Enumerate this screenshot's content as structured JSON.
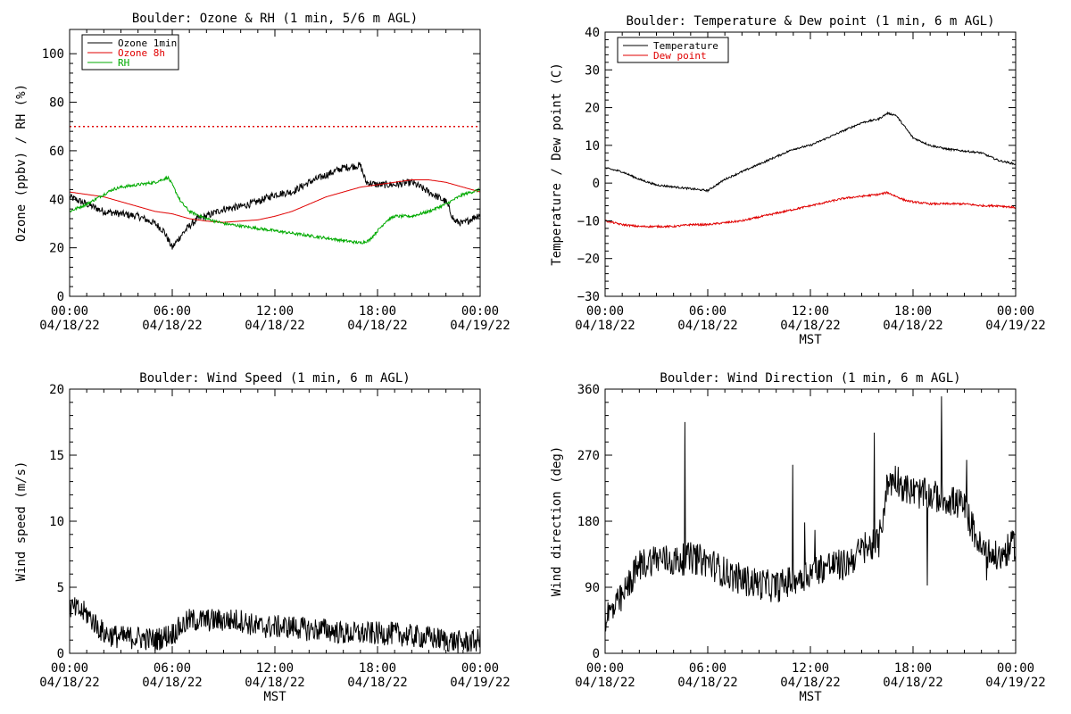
{
  "chart_data": [
    {
      "type": "line",
      "title": "Boulder: Ozone & RH (1 min, 5/6 m AGL)",
      "xlabel": "",
      "ylabel": "Ozone (ppbv) / RH (%)",
      "xlim": [
        "2022-04-18 00:00",
        "2022-04-19 00:00"
      ],
      "ylim": [
        0,
        110
      ],
      "xticks": [
        {
          "time": "00:00",
          "date": "04/18/22"
        },
        {
          "time": "06:00",
          "date": "04/18/22"
        },
        {
          "time": "12:00",
          "date": "04/18/22"
        },
        {
          "time": "18:00",
          "date": "04/18/22"
        },
        {
          "time": "00:00",
          "date": "04/19/22"
        }
      ],
      "yticks": [
        "0",
        "20",
        "40",
        "60",
        "80",
        "100"
      ],
      "legend_position": "top-left",
      "reference_line": {
        "y": 70,
        "color": "#e00000",
        "style": "dotted"
      },
      "series": [
        {
          "name": "Ozone 1min",
          "color": "#000000",
          "noise": 1.5,
          "points": [
            [
              "00:00",
              41
            ],
            [
              "01:00",
              38
            ],
            [
              "02:00",
              35
            ],
            [
              "03:00",
              34
            ],
            [
              "04:00",
              33
            ],
            [
              "05:00",
              30
            ],
            [
              "05:30",
              27
            ],
            [
              "06:00",
              20
            ],
            [
              "06:30",
              25
            ],
            [
              "07:00",
              29
            ],
            [
              "07:30",
              32
            ],
            [
              "08:00",
              33
            ],
            [
              "09:00",
              36
            ],
            [
              "10:00",
              37
            ],
            [
              "11:00",
              39
            ],
            [
              "12:00",
              42
            ],
            [
              "13:00",
              43
            ],
            [
              "14:00",
              47
            ],
            [
              "15:00",
              50
            ],
            [
              "16:00",
              53
            ],
            [
              "17:00",
              54
            ],
            [
              "17:20",
              47
            ],
            [
              "18:00",
              46
            ],
            [
              "19:00",
              46
            ],
            [
              "20:00",
              47
            ],
            [
              "21:00",
              43
            ],
            [
              "22:00",
              39
            ],
            [
              "22:30",
              31
            ],
            [
              "23:00",
              30
            ],
            [
              "23:30",
              32
            ],
            [
              "24:00",
              34
            ]
          ]
        },
        {
          "name": "Ozone 8h",
          "color": "#e00000",
          "noise": 0,
          "points": [
            [
              "00:00",
              43
            ],
            [
              "01:00",
              42
            ],
            [
              "02:00",
              41
            ],
            [
              "03:00",
              39
            ],
            [
              "04:00",
              37
            ],
            [
              "05:00",
              35
            ],
            [
              "06:00",
              34
            ],
            [
              "07:00",
              32
            ],
            [
              "08:00",
              31
            ],
            [
              "09:00",
              30.5
            ],
            [
              "10:00",
              31
            ],
            [
              "11:00",
              31.5
            ],
            [
              "12:00",
              33
            ],
            [
              "13:00",
              35
            ],
            [
              "14:00",
              38
            ],
            [
              "15:00",
              41
            ],
            [
              "16:00",
              43
            ],
            [
              "17:00",
              45
            ],
            [
              "18:00",
              46
            ],
            [
              "19:00",
              47
            ],
            [
              "20:00",
              48
            ],
            [
              "21:00",
              48
            ],
            [
              "22:00",
              47
            ],
            [
              "23:00",
              45
            ],
            [
              "24:00",
              43
            ]
          ]
        },
        {
          "name": "RH",
          "color": "#00aa00",
          "noise": 0.6,
          "points": [
            [
              "00:00",
              35
            ],
            [
              "01:00",
              38
            ],
            [
              "02:00",
              42
            ],
            [
              "02:30",
              44
            ],
            [
              "03:00",
              45
            ],
            [
              "04:00",
              46
            ],
            [
              "05:00",
              47
            ],
            [
              "05:45",
              49
            ],
            [
              "06:00",
              46
            ],
            [
              "06:30",
              39
            ],
            [
              "07:00",
              35
            ],
            [
              "08:00",
              32
            ],
            [
              "09:00",
              30
            ],
            [
              "10:00",
              29
            ],
            [
              "11:00",
              28
            ],
            [
              "12:00",
              27
            ],
            [
              "13:00",
              26
            ],
            [
              "14:00",
              25
            ],
            [
              "15:00",
              24
            ],
            [
              "16:00",
              23
            ],
            [
              "17:00",
              22
            ],
            [
              "17:30",
              23
            ],
            [
              "18:00",
              27
            ],
            [
              "18:30",
              31
            ],
            [
              "19:00",
              33
            ],
            [
              "20:00",
              33
            ],
            [
              "21:00",
              35
            ],
            [
              "22:00",
              38
            ],
            [
              "23:00",
              42
            ],
            [
              "24:00",
              44
            ]
          ]
        }
      ]
    },
    {
      "type": "line",
      "title": "Boulder: Temperature & Dew point (1 min, 6 m AGL)",
      "xlabel": "MST",
      "ylabel": "Temperature / Dew point (C)",
      "xlim": [
        "2022-04-18 00:00",
        "2022-04-19 00:00"
      ],
      "ylim": [
        -30,
        40
      ],
      "xticks": [
        {
          "time": "00:00",
          "date": "04/18/22"
        },
        {
          "time": "06:00",
          "date": "04/18/22"
        },
        {
          "time": "12:00",
          "date": "04/18/22"
        },
        {
          "time": "18:00",
          "date": "04/18/22"
        },
        {
          "time": "00:00",
          "date": "04/19/22"
        }
      ],
      "yticks": [
        "−30",
        "−20",
        "−10",
        "0",
        "10",
        "20",
        "30",
        "40"
      ],
      "legend_position": "top-left",
      "series": [
        {
          "name": "Temperature",
          "color": "#000000",
          "noise": 0.25,
          "points": [
            [
              "00:00",
              4
            ],
            [
              "01:00",
              3
            ],
            [
              "02:00",
              1
            ],
            [
              "03:00",
              -0.5
            ],
            [
              "04:00",
              -1
            ],
            [
              "05:00",
              -1.5
            ],
            [
              "06:00",
              -2
            ],
            [
              "07:00",
              1
            ],
            [
              "08:00",
              3
            ],
            [
              "09:00",
              5
            ],
            [
              "10:00",
              7
            ],
            [
              "11:00",
              9
            ],
            [
              "12:00",
              10
            ],
            [
              "13:00",
              12
            ],
            [
              "14:00",
              14
            ],
            [
              "15:00",
              16
            ],
            [
              "16:00",
              17
            ],
            [
              "16:30",
              18.5
            ],
            [
              "17:00",
              18
            ],
            [
              "17:30",
              15
            ],
            [
              "18:00",
              12
            ],
            [
              "19:00",
              10
            ],
            [
              "20:00",
              9
            ],
            [
              "21:00",
              8.5
            ],
            [
              "22:00",
              8
            ],
            [
              "23:00",
              6
            ],
            [
              "24:00",
              5
            ]
          ]
        },
        {
          "name": "Dew point",
          "color": "#e00000",
          "noise": 0.25,
          "points": [
            [
              "00:00",
              -10
            ],
            [
              "01:00",
              -11
            ],
            [
              "02:00",
              -11.5
            ],
            [
              "03:00",
              -11.5
            ],
            [
              "04:00",
              -11.5
            ],
            [
              "05:00",
              -11
            ],
            [
              "06:00",
              -11
            ],
            [
              "07:00",
              -10.5
            ],
            [
              "08:00",
              -10
            ],
            [
              "09:00",
              -9
            ],
            [
              "10:00",
              -8
            ],
            [
              "11:00",
              -7
            ],
            [
              "12:00",
              -6
            ],
            [
              "13:00",
              -5
            ],
            [
              "14:00",
              -4
            ],
            [
              "15:00",
              -3.5
            ],
            [
              "16:00",
              -3
            ],
            [
              "16:30",
              -2.5
            ],
            [
              "17:00",
              -3.5
            ],
            [
              "17:30",
              -4.5
            ],
            [
              "18:00",
              -5
            ],
            [
              "19:00",
              -5.5
            ],
            [
              "20:00",
              -5.5
            ],
            [
              "21:00",
              -5.5
            ],
            [
              "22:00",
              -6
            ],
            [
              "23:00",
              -6
            ],
            [
              "24:00",
              -6.5
            ]
          ]
        }
      ]
    },
    {
      "type": "line",
      "title": "Boulder: Wind Speed (1 min, 6 m AGL)",
      "xlabel": "MST",
      "ylabel": "Wind speed (m/s)",
      "xlim": [
        "2022-04-18 00:00",
        "2022-04-19 00:00"
      ],
      "ylim": [
        0,
        20
      ],
      "xticks": [
        {
          "time": "00:00",
          "date": "04/18/22"
        },
        {
          "time": "06:00",
          "date": "04/18/22"
        },
        {
          "time": "12:00",
          "date": "04/18/22"
        },
        {
          "time": "18:00",
          "date": "04/18/22"
        },
        {
          "time": "00:00",
          "date": "04/19/22"
        }
      ],
      "yticks": [
        "0",
        "5",
        "10",
        "15",
        "20"
      ],
      "series": [
        {
          "color": "#000000",
          "noise": 0.9,
          "points": [
            [
              "00:00",
              3.5
            ],
            [
              "01:00",
              3
            ],
            [
              "02:00",
              1.5
            ],
            [
              "03:00",
              1.2
            ],
            [
              "04:00",
              1.2
            ],
            [
              "05:00",
              1
            ],
            [
              "06:00",
              1.5
            ],
            [
              "07:00",
              2.5
            ],
            [
              "08:00",
              2.5
            ],
            [
              "09:00",
              2.5
            ],
            [
              "10:00",
              2.5
            ],
            [
              "11:00",
              2
            ],
            [
              "12:00",
              2
            ],
            [
              "13:00",
              2
            ],
            [
              "14:00",
              1.8
            ],
            [
              "15:00",
              1.8
            ],
            [
              "16:00",
              1.5
            ],
            [
              "17:00",
              1.5
            ],
            [
              "18:00",
              1.5
            ],
            [
              "19:00",
              1.5
            ],
            [
              "20:00",
              1.3
            ],
            [
              "21:00",
              1.2
            ],
            [
              "22:00",
              1
            ],
            [
              "23:00",
              0.8
            ],
            [
              "24:00",
              1
            ]
          ]
        }
      ]
    },
    {
      "type": "line",
      "title": "Boulder: Wind Direction (1 min, 6 m AGL)",
      "xlabel": "MST",
      "ylabel": "Wind direction (deg)",
      "xlim": [
        "2022-04-18 00:00",
        "2022-04-19 00:00"
      ],
      "ylim": [
        0,
        360
      ],
      "xticks": [
        {
          "time": "00:00",
          "date": "04/18/22"
        },
        {
          "time": "06:00",
          "date": "04/18/22"
        },
        {
          "time": "12:00",
          "date": "04/18/22"
        },
        {
          "time": "18:00",
          "date": "04/18/22"
        },
        {
          "time": "00:00",
          "date": "04/19/22"
        }
      ],
      "yticks": [
        "0",
        "90",
        "180",
        "270",
        "360"
      ],
      "series": [
        {
          "color": "#000000",
          "noise": 22,
          "points": [
            [
              "00:00",
              50
            ],
            [
              "00:30",
              60
            ],
            [
              "01:00",
              75
            ],
            [
              "01:30",
              100
            ],
            [
              "02:00",
              120
            ],
            [
              "03:00",
              130
            ],
            [
              "04:00",
              125
            ],
            [
              "05:00",
              130
            ],
            [
              "06:00",
              125
            ],
            [
              "07:00",
              110
            ],
            [
              "08:00",
              100
            ],
            [
              "09:00",
              95
            ],
            [
              "10:00",
              90
            ],
            [
              "11:00",
              100
            ],
            [
              "12:00",
              110
            ],
            [
              "13:00",
              120
            ],
            [
              "14:00",
              120
            ],
            [
              "15:00",
              140
            ],
            [
              "16:00",
              150
            ],
            [
              "16:30",
              230
            ],
            [
              "17:00",
              240
            ],
            [
              "17:30",
              225
            ],
            [
              "18:00",
              220
            ],
            [
              "19:00",
              215
            ],
            [
              "20:00",
              210
            ],
            [
              "21:00",
              200
            ],
            [
              "22:00",
              140
            ],
            [
              "23:00",
              130
            ],
            [
              "24:00",
              150
            ]
          ]
        }
      ]
    }
  ]
}
